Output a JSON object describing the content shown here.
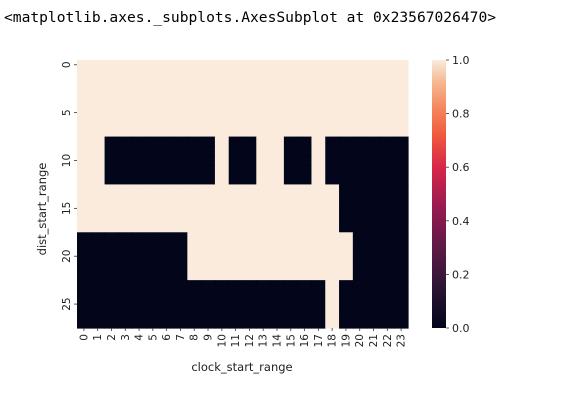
{
  "output_text": "<matplotlib.axes._subplots.AxesSubplot at 0x23567026470>",
  "chart_data": {
    "type": "heatmap",
    "title": "",
    "xlabel": "clock_start_range",
    "ylabel": "dist_start_range",
    "x_categories": [
      0,
      1,
      2,
      3,
      4,
      5,
      6,
      7,
      8,
      9,
      10,
      11,
      12,
      13,
      14,
      15,
      16,
      17,
      18,
      19,
      20,
      21,
      22,
      23
    ],
    "y_tick_labels": [
      "0",
      "5",
      "10",
      "15",
      "20",
      "25"
    ],
    "y_rows": 28,
    "colorbar": {
      "min": 0.0,
      "max": 1.0,
      "ticks": [
        "0.0",
        "0.2",
        "0.4",
        "0.6",
        "0.8",
        "1.0"
      ],
      "colormap": "rocket"
    },
    "low_color": "#03051a",
    "high_color": "#faebdd",
    "values": [
      [
        1,
        1,
        1,
        1,
        1,
        1,
        1,
        1,
        1,
        1,
        1,
        1,
        1,
        1,
        1,
        1,
        1,
        1,
        1,
        1,
        1,
        1,
        1,
        1
      ],
      [
        1,
        1,
        1,
        1,
        1,
        1,
        1,
        1,
        1,
        1,
        1,
        1,
        1,
        1,
        1,
        1,
        1,
        1,
        1,
        1,
        1,
        1,
        1,
        1
      ],
      [
        1,
        1,
        1,
        1,
        1,
        1,
        1,
        1,
        1,
        1,
        1,
        1,
        1,
        1,
        1,
        1,
        1,
        1,
        1,
        1,
        1,
        1,
        1,
        1
      ],
      [
        1,
        1,
        1,
        1,
        1,
        1,
        1,
        1,
        1,
        1,
        1,
        1,
        1,
        1,
        1,
        1,
        1,
        1,
        1,
        1,
        1,
        1,
        1,
        1
      ],
      [
        1,
        1,
        1,
        1,
        1,
        1,
        1,
        1,
        1,
        1,
        1,
        1,
        1,
        1,
        1,
        1,
        1,
        1,
        1,
        1,
        1,
        1,
        1,
        1
      ],
      [
        1,
        1,
        1,
        1,
        1,
        1,
        1,
        1,
        1,
        1,
        1,
        1,
        1,
        1,
        1,
        1,
        1,
        1,
        1,
        1,
        1,
        1,
        1,
        1
      ],
      [
        1,
        1,
        1,
        1,
        1,
        1,
        1,
        1,
        1,
        1,
        1,
        1,
        1,
        1,
        1,
        1,
        1,
        1,
        1,
        1,
        1,
        1,
        1,
        1
      ],
      [
        1,
        1,
        1,
        1,
        1,
        1,
        1,
        1,
        1,
        1,
        1,
        1,
        1,
        1,
        1,
        1,
        1,
        1,
        1,
        1,
        1,
        1,
        1,
        1
      ],
      [
        1,
        1,
        0,
        0,
        0,
        0,
        0,
        0,
        0,
        0,
        1,
        0,
        0,
        1,
        1,
        0,
        0,
        1,
        0,
        0,
        0,
        0,
        0,
        0
      ],
      [
        1,
        1,
        0,
        0,
        0,
        0,
        0,
        0,
        0,
        0,
        1,
        0,
        0,
        1,
        1,
        0,
        0,
        1,
        0,
        0,
        0,
        0,
        0,
        0
      ],
      [
        1,
        1,
        0,
        0,
        0,
        0,
        0,
        0,
        0,
        0,
        1,
        0,
        0,
        1,
        1,
        0,
        0,
        1,
        0,
        0,
        0,
        0,
        0,
        0
      ],
      [
        1,
        1,
        0,
        0,
        0,
        0,
        0,
        0,
        0,
        0,
        1,
        0,
        0,
        1,
        1,
        0,
        0,
        1,
        0,
        0,
        0,
        0,
        0,
        0
      ],
      [
        1,
        1,
        0,
        0,
        0,
        0,
        0,
        0,
        0,
        0,
        1,
        0,
        0,
        1,
        1,
        0,
        0,
        1,
        0,
        0,
        0,
        0,
        0,
        0
      ],
      [
        1,
        1,
        1,
        1,
        1,
        1,
        1,
        1,
        1,
        1,
        1,
        1,
        1,
        1,
        1,
        1,
        1,
        1,
        1,
        0,
        0,
        0,
        0,
        0
      ],
      [
        1,
        1,
        1,
        1,
        1,
        1,
        1,
        1,
        1,
        1,
        1,
        1,
        1,
        1,
        1,
        1,
        1,
        1,
        1,
        0,
        0,
        0,
        0,
        0
      ],
      [
        1,
        1,
        1,
        1,
        1,
        1,
        1,
        1,
        1,
        1,
        1,
        1,
        1,
        1,
        1,
        1,
        1,
        1,
        1,
        0,
        0,
        0,
        0,
        0
      ],
      [
        1,
        1,
        1,
        1,
        1,
        1,
        1,
        1,
        1,
        1,
        1,
        1,
        1,
        1,
        1,
        1,
        1,
        1,
        1,
        0,
        0,
        0,
        0,
        0
      ],
      [
        1,
        1,
        1,
        1,
        1,
        1,
        1,
        1,
        1,
        1,
        1,
        1,
        1,
        1,
        1,
        1,
        1,
        1,
        1,
        0,
        0,
        0,
        0,
        0
      ],
      [
        0,
        0,
        0,
        0,
        0,
        0,
        0,
        0,
        1,
        1,
        1,
        1,
        1,
        1,
        1,
        1,
        1,
        1,
        1,
        1,
        0,
        0,
        0,
        0
      ],
      [
        0,
        0,
        0,
        0,
        0,
        0,
        0,
        0,
        1,
        1,
        1,
        1,
        1,
        1,
        1,
        1,
        1,
        1,
        1,
        1,
        0,
        0,
        0,
        0
      ],
      [
        0,
        0,
        0,
        0,
        0,
        0,
        0,
        0,
        1,
        1,
        1,
        1,
        1,
        1,
        1,
        1,
        1,
        1,
        1,
        1,
        0,
        0,
        0,
        0
      ],
      [
        0,
        0,
        0,
        0,
        0,
        0,
        0,
        0,
        1,
        1,
        1,
        1,
        1,
        1,
        1,
        1,
        1,
        1,
        1,
        1,
        0,
        0,
        0,
        0
      ],
      [
        0,
        0,
        0,
        0,
        0,
        0,
        0,
        0,
        1,
        1,
        1,
        1,
        1,
        1,
        1,
        1,
        1,
        1,
        1,
        1,
        0,
        0,
        0,
        0
      ],
      [
        0,
        0,
        0,
        0,
        0,
        0,
        0,
        0,
        0,
        0,
        0,
        0,
        0,
        0,
        0,
        0,
        0,
        0,
        1,
        0,
        0,
        0,
        0,
        0
      ],
      [
        0,
        0,
        0,
        0,
        0,
        0,
        0,
        0,
        0,
        0,
        0,
        0,
        0,
        0,
        0,
        0,
        0,
        0,
        1,
        0,
        0,
        0,
        0,
        0
      ],
      [
        0,
        0,
        0,
        0,
        0,
        0,
        0,
        0,
        0,
        0,
        0,
        0,
        0,
        0,
        0,
        0,
        0,
        0,
        1,
        0,
        0,
        0,
        0,
        0
      ],
      [
        0,
        0,
        0,
        0,
        0,
        0,
        0,
        0,
        0,
        0,
        0,
        0,
        0,
        0,
        0,
        0,
        0,
        0,
        1,
        0,
        0,
        0,
        0,
        0
      ],
      [
        0,
        0,
        0,
        0,
        0,
        0,
        0,
        0,
        0,
        0,
        0,
        0,
        0,
        0,
        0,
        0,
        0,
        0,
        1,
        0,
        0,
        0,
        0,
        0
      ]
    ]
  }
}
